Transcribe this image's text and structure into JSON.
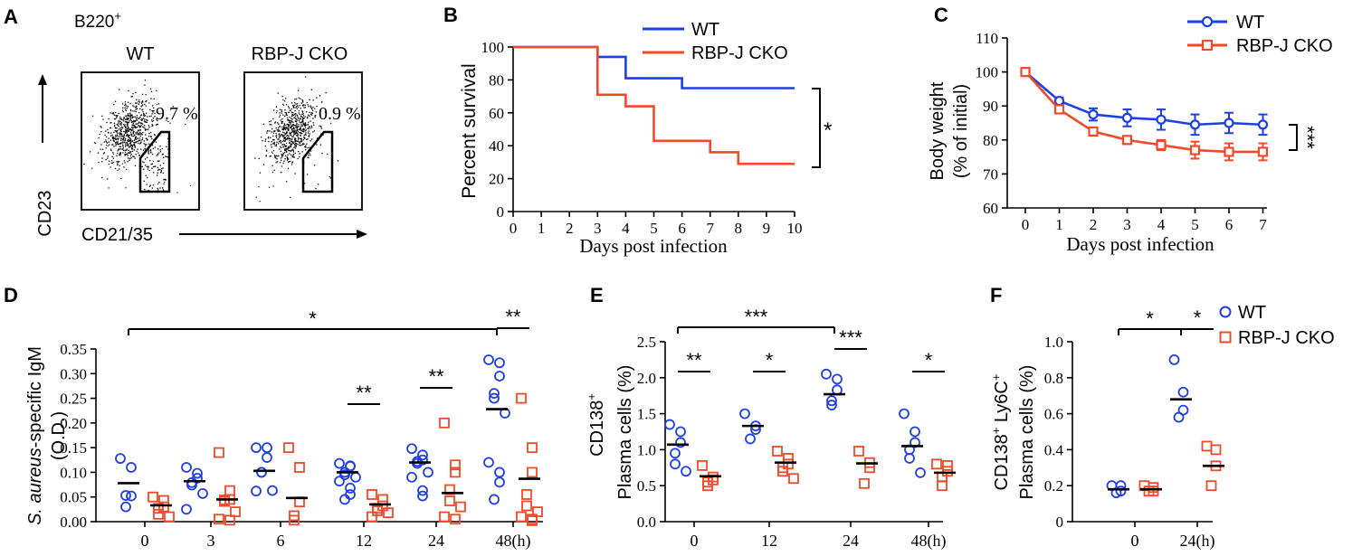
{
  "colors": {
    "wt": "#1f3fe6",
    "ko": "#f04a2a",
    "ink": "#000000"
  },
  "panels": {
    "A": {
      "letter": "A",
      "gate_title": "B220",
      "gate_title_sup": "+",
      "plots": [
        {
          "title": "WT",
          "gate_percent": "9.7 %",
          "gated_fraction": 0.097
        },
        {
          "title": "RBP-J CKO",
          "gate_percent": "0.9 %",
          "gated_fraction": 0.009
        }
      ],
      "y_label": "CD23",
      "x_label": "CD21/35"
    }
  },
  "chart_data": [
    {
      "panel": "B",
      "type": "line",
      "step": true,
      "xlabel": "Days post infection",
      "ylabel": "Percent survival",
      "xlim": [
        0,
        10
      ],
      "ylim": [
        0,
        100
      ],
      "xticks": [
        0,
        1,
        2,
        3,
        4,
        5,
        6,
        7,
        8,
        9,
        10
      ],
      "yticks": [
        0,
        20,
        40,
        60,
        80,
        100
      ],
      "series": [
        {
          "name": "WT",
          "color": "#1f3fe6",
          "x": [
            0,
            3,
            4,
            6,
            10
          ],
          "y": [
            100,
            94,
            81,
            75,
            75
          ]
        },
        {
          "name": "RBP-J CKO",
          "color": "#f04a2a",
          "x": [
            0,
            3,
            4,
            5,
            7,
            8,
            10
          ],
          "y": [
            100,
            71,
            64,
            43,
            36,
            29,
            29
          ]
        }
      ],
      "significance": [
        {
          "label": "*",
          "between": [
            "WT",
            "RBP-J CKO"
          ]
        }
      ]
    },
    {
      "panel": "C",
      "type": "line",
      "xlabel": "Days post infection",
      "ylabel": "Body weight",
      "ylabel2": "(% of initial)",
      "xlim": [
        0,
        7
      ],
      "ylim": [
        60,
        110
      ],
      "xticks": [
        0,
        1,
        2,
        3,
        4,
        5,
        6,
        7
      ],
      "yticks": [
        60,
        70,
        80,
        90,
        100,
        110
      ],
      "series": [
        {
          "name": "WT",
          "color": "#1f3fe6",
          "marker": "circle",
          "x": [
            0,
            1,
            2,
            3,
            4,
            5,
            6,
            7
          ],
          "y": [
            100,
            91.5,
            87.5,
            86.5,
            86,
            84.5,
            85,
            84.5
          ],
          "err": [
            0,
            1,
            1.8,
            2.5,
            3,
            3,
            3,
            3
          ]
        },
        {
          "name": "RBP-J CKO",
          "color": "#f04a2a",
          "marker": "square",
          "x": [
            0,
            1,
            2,
            3,
            4,
            5,
            6,
            7
          ],
          "y": [
            100,
            89,
            82.5,
            80,
            78.5,
            77,
            76.5,
            76.5
          ],
          "err": [
            0,
            0.5,
            1,
            1,
            1.5,
            2.5,
            2.5,
            2.5
          ]
        }
      ],
      "significance": [
        {
          "label": "***"
        }
      ]
    },
    {
      "panel": "D",
      "type": "scatter",
      "ylabel_italic": "S. aureus",
      "ylabel": "-specific IgM",
      "ylabel2": "(O.D.)",
      "ylim": [
        0,
        0.35
      ],
      "yticks": [
        "0.00",
        "0.05",
        "0.10",
        "0.15",
        "0.20",
        "0.25",
        "0.30",
        "0.35"
      ],
      "categories": [
        "0",
        "3",
        "6",
        "12",
        "24",
        "48"
      ],
      "unit": "(h)",
      "series": [
        {
          "name": "WT",
          "color": "#1f3fe6",
          "marker": "circle",
          "points": [
            [
              0.128,
              0.11,
              0.052,
              0.053,
              0.03
            ],
            [
              0.11,
              0.098,
              0.088,
              0.079,
              0.074,
              0.057,
              0.025
            ],
            [
              0.15,
              0.15,
              0.13,
              0.1,
              0.1,
              0.063,
              0.062
            ],
            [
              0.118,
              0.113,
              0.112,
              0.1,
              0.095,
              0.09,
              0.082,
              0.068,
              0.055,
              0.045
            ],
            [
              0.148,
              0.135,
              0.125,
              0.122,
              0.118,
              0.1,
              0.09,
              0.063,
              0.052
            ],
            [
              0.328,
              0.322,
              0.295,
              0.26,
              0.25,
              0.22,
              0.12,
              0.1,
              0.08,
              0.045
            ]
          ],
          "means": [
            0.078,
            0.082,
            0.103,
            0.1,
            0.12,
            0.228
          ]
        },
        {
          "name": "RBP-J CKO",
          "color": "#f04a2a",
          "marker": "square",
          "points": [
            [
              0.05,
              0.043,
              0.03,
              0.027,
              0.015,
              0.01
            ],
            [
              0.14,
              0.063,
              0.045,
              0.044,
              0.041,
              0.02,
              0.005,
              0.003
            ],
            [
              0.15,
              0.11,
              0.04,
              0.012,
              0.003
            ],
            [
              0.055,
              0.045,
              0.032,
              0.027,
              0.022,
              0.018,
              0.01
            ],
            [
              0.2,
              0.115,
              0.1,
              0.065,
              0.042,
              0.03,
              0.01,
              0.005
            ],
            [
              0.25,
              0.15,
              0.1,
              0.055,
              0.032,
              0.02,
              0.01,
              0.005,
              0.002
            ]
          ],
          "means": [
            0.033,
            0.045,
            0.048,
            0.035,
            0.058,
            0.087
          ]
        }
      ],
      "significance": [
        {
          "label": "*",
          "from": "0",
          "to": "48"
        },
        {
          "label": "**",
          "at": "12"
        },
        {
          "label": "**",
          "at": "24"
        },
        {
          "label": "**",
          "at": "48"
        }
      ]
    },
    {
      "panel": "E",
      "type": "scatter",
      "ylabel_top": "CD138",
      "ylabel_top_sup": "+",
      "ylabel": "Plasma cells (%)",
      "ylim": [
        0,
        2.5
      ],
      "yticks": [
        "0.0",
        "0.5",
        "1.0",
        "1.5",
        "2.0",
        "2.5"
      ],
      "categories": [
        "0",
        "12",
        "24",
        "48"
      ],
      "unit": "(h)",
      "series": [
        {
          "name": "WT",
          "color": "#1f3fe6",
          "marker": "circle",
          "points": [
            [
              1.35,
              1.25,
              1.1,
              0.95,
              0.8,
              0.7
            ],
            [
              1.5,
              1.33,
              1.28,
              1.15
            ],
            [
              2.05,
              1.98,
              1.83,
              1.68,
              1.62
            ],
            [
              1.5,
              1.25,
              1.1,
              1.0,
              0.88,
              0.68
            ]
          ],
          "means": [
            1.07,
            1.33,
            1.77,
            1.05
          ]
        },
        {
          "name": "RBP-J CKO",
          "color": "#f04a2a",
          "marker": "square",
          "points": [
            [
              0.78,
              0.62,
              0.58,
              0.55,
              0.5
            ],
            [
              0.98,
              0.88,
              0.8,
              0.75,
              0.7,
              0.6
            ],
            [
              0.98,
              0.82,
              0.75,
              0.53
            ],
            [
              0.8,
              0.78,
              0.7,
              0.62,
              0.5
            ]
          ],
          "means": [
            0.63,
            0.82,
            0.81,
            0.68
          ]
        }
      ],
      "significance": [
        {
          "label": "***",
          "from": "0",
          "to": "24"
        },
        {
          "label": "**",
          "at": "0"
        },
        {
          "label": "*",
          "at": "12"
        },
        {
          "label": "***",
          "at": "24"
        },
        {
          "label": "*",
          "at": "48"
        }
      ]
    },
    {
      "panel": "F",
      "type": "scatter",
      "ylabel_top": "CD138",
      "ylabel_top_sup": "+",
      "ylabel_mid": " Ly6C",
      "ylabel_mid_sup": "+",
      "ylabel": "Plasma cells (%)",
      "ylim": [
        0,
        1.0
      ],
      "yticks": [
        "0",
        "0.2",
        "0.4",
        "0.6",
        "0.8",
        "1.0"
      ],
      "categories": [
        "0",
        "24"
      ],
      "unit": "(h)",
      "series": [
        {
          "name": "WT",
          "color": "#1f3fe6",
          "marker": "circle",
          "points": [
            [
              0.2,
              0.2,
              0.17,
              0.16
            ],
            [
              0.9,
              0.72,
              0.62,
              0.58
            ]
          ],
          "means": [
            0.18,
            0.68
          ]
        },
        {
          "name": "RBP-J CKO",
          "color": "#f04a2a",
          "marker": "square",
          "points": [
            [
              0.2,
              0.19,
              0.17,
              0.17
            ],
            [
              0.42,
              0.4,
              0.31,
              0.2
            ]
          ],
          "means": [
            0.18,
            0.31
          ]
        }
      ],
      "legend": [
        "WT",
        "RBP-J CKO"
      ],
      "significance": [
        {
          "label": "*",
          "from": "0",
          "to": "24"
        },
        {
          "label": "*",
          "at": "24"
        }
      ]
    }
  ]
}
